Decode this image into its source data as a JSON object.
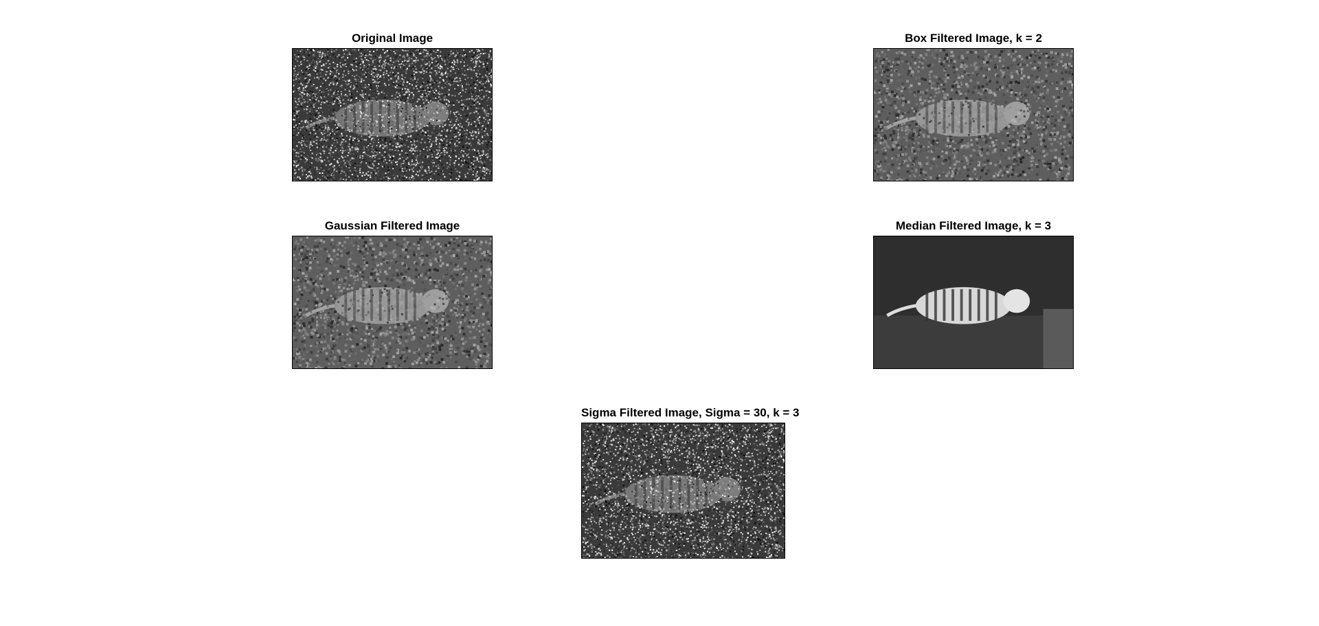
{
  "figure": {
    "panels": [
      {
        "id": "original",
        "title": "Original Image",
        "kind": "heavy-noise"
      },
      {
        "id": "box",
        "title": "Box Filtered Image, k = 2",
        "kind": "smoothed-noise"
      },
      {
        "id": "gauss",
        "title": "Gaussian Filtered Image",
        "kind": "smoothed-noise"
      },
      {
        "id": "median",
        "title": "Median Filtered Image, k = 3",
        "kind": "clean"
      },
      {
        "id": "sigma",
        "title": "Sigma Filtered Image, Sigma = 30, k = 3",
        "kind": "heavy-noise"
      }
    ]
  }
}
